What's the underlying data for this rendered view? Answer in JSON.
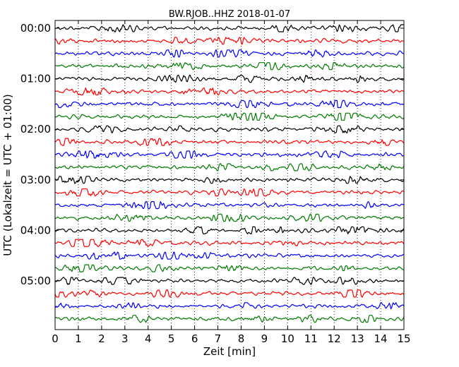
{
  "chart_data": {
    "type": "line",
    "title": "BW.RJOB..HHZ 2018-01-07",
    "xlabel": "Zeit  [min]",
    "ylabel": "UTC (Lokalzeit = UTC + 01:00)",
    "xlim": [
      0,
      15
    ],
    "x_ticks": [
      "0",
      "1",
      "2",
      "3",
      "4",
      "5",
      "6",
      "7",
      "8",
      "9",
      "10",
      "11",
      "12",
      "13",
      "14",
      "15"
    ],
    "y_ticks": [
      "00:00",
      "01:00",
      "02:00",
      "03:00",
      "04:00",
      "05:00"
    ],
    "grid": "vertical dotted",
    "trace_colors": [
      "#000000",
      "#ff0000",
      "#0000ff",
      "#007a00"
    ],
    "traces": [
      {
        "start": "00:00"
      },
      {
        "start": "00:15"
      },
      {
        "start": "00:30"
      },
      {
        "start": "00:45"
      },
      {
        "start": "01:00"
      },
      {
        "start": "01:15"
      },
      {
        "start": "01:30"
      },
      {
        "start": "01:45"
      },
      {
        "start": "02:00"
      },
      {
        "start": "02:15"
      },
      {
        "start": "02:30"
      },
      {
        "start": "02:45"
      },
      {
        "start": "03:00"
      },
      {
        "start": "03:15"
      },
      {
        "start": "03:30"
      },
      {
        "start": "03:45"
      },
      {
        "start": "04:00"
      },
      {
        "start": "04:15"
      },
      {
        "start": "04:30"
      },
      {
        "start": "04:45"
      },
      {
        "start": "05:00"
      },
      {
        "start": "05:15"
      },
      {
        "start": "05:30"
      },
      {
        "start": "05:45"
      }
    ]
  }
}
